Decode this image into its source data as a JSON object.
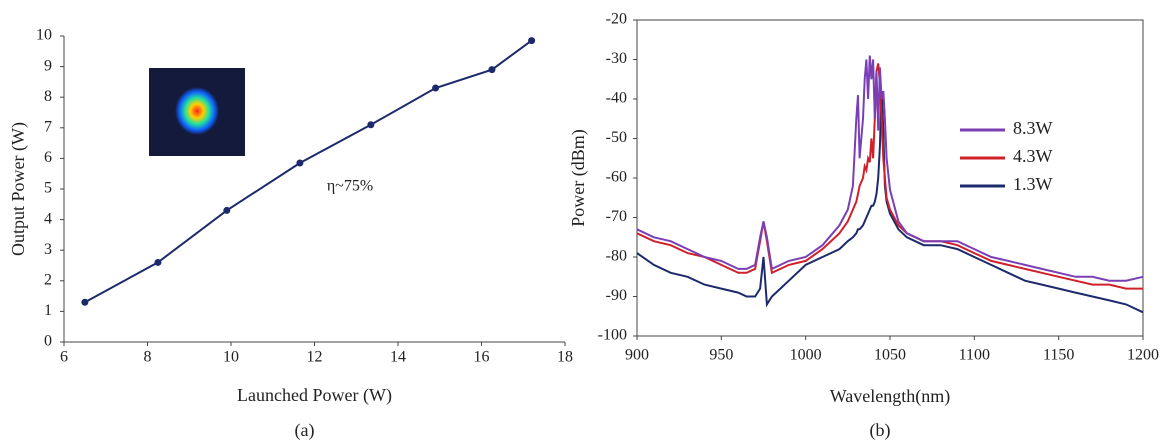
{
  "chart_data": [
    {
      "type": "line",
      "caption": "(a)",
      "xlabel": "Launched Power (W)",
      "ylabel": "Output Power (W)",
      "annotation": "η~75%",
      "x": [
        6.5,
        8.25,
        9.9,
        11.65,
        13.35,
        14.9,
        16.25,
        17.2
      ],
      "values": [
        1.3,
        2.6,
        4.3,
        5.85,
        7.1,
        8.3,
        8.9,
        9.85
      ],
      "color": "#1c2a6b",
      "markers": true,
      "frame": false,
      "xlim": [
        6,
        18
      ],
      "xticks": [
        6,
        8,
        10,
        12,
        14,
        16,
        18
      ],
      "ylim": [
        0,
        10
      ],
      "yticks": [
        0,
        1,
        2,
        3,
        4,
        5,
        6,
        7,
        8,
        9,
        10
      ]
    },
    {
      "type": "line",
      "caption": "(b)",
      "xlabel": "Wavelength(nm)",
      "ylabel": "Power (dBm)",
      "legend": "center right",
      "markers": false,
      "frame": true,
      "x": [
        900,
        910,
        920,
        930,
        940,
        950,
        960,
        965,
        970,
        973,
        975,
        977,
        980,
        985,
        990,
        1000,
        1010,
        1020,
        1025,
        1028,
        1030,
        1031,
        1032,
        1034,
        1035,
        1036,
        1037,
        1038,
        1039,
        1040,
        1041,
        1042,
        1043,
        1044,
        1045,
        1046,
        1047,
        1048,
        1050,
        1055,
        1060,
        1070,
        1080,
        1090,
        1100,
        1110,
        1120,
        1130,
        1140,
        1150,
        1160,
        1170,
        1180,
        1190,
        1200
      ],
      "series": [
        {
          "name": "8.3W",
          "color": "#7b3fb5",
          "values": [
            -73,
            -75,
            -76,
            -78,
            -80,
            -81,
            -83,
            -83,
            -82,
            -75,
            -71,
            -75,
            -83,
            -82,
            -81,
            -80,
            -77,
            -72,
            -68,
            -62,
            -45,
            -39,
            -55,
            -45,
            -35,
            -30,
            -40,
            -29,
            -35,
            -30,
            -45,
            -33,
            -48,
            -32,
            -40,
            -38,
            -45,
            -55,
            -63,
            -71,
            -74,
            -76,
            -76,
            -76,
            -78,
            -80,
            -81,
            -82,
            -83,
            -84,
            -85,
            -85,
            -86,
            -86,
            -85
          ]
        },
        {
          "name": "4.3W",
          "color": "#d0202a",
          "values": [
            -74,
            -76,
            -77,
            -79,
            -80,
            -82,
            -84,
            -84,
            -83,
            -76,
            -71,
            -76,
            -84,
            -83,
            -82,
            -81,
            -78,
            -74,
            -71,
            -68,
            -66,
            -64,
            -62,
            -60,
            -57,
            -58,
            -55,
            -56,
            -50,
            -55,
            -45,
            -33,
            -31,
            -36,
            -45,
            -55,
            -60,
            -65,
            -68,
            -72,
            -74,
            -76,
            -76,
            -77,
            -79,
            -81,
            -82,
            -83,
            -84,
            -85,
            -86,
            -87,
            -87,
            -88,
            -88
          ]
        },
        {
          "name": "1.3W",
          "color": "#1c2a6b",
          "values": [
            -79,
            -82,
            -84,
            -85,
            -87,
            -88,
            -89,
            -90,
            -90,
            -88,
            -80,
            -92,
            -90,
            -88,
            -86,
            -82,
            -80,
            -78,
            -76,
            -75,
            -74,
            -73,
            -73,
            -72,
            -71,
            -70,
            -69,
            -68,
            -67,
            -67,
            -66,
            -64,
            -60,
            -52,
            -38,
            -48,
            -62,
            -66,
            -69,
            -73,
            -75,
            -77,
            -77,
            -78,
            -80,
            -82,
            -84,
            -86,
            -87,
            -88,
            -89,
            -90,
            -91,
            -92,
            -94
          ]
        }
      ],
      "xlim": [
        900,
        1200
      ],
      "xticks": [
        900,
        950,
        1000,
        1050,
        1100,
        1150,
        1200
      ],
      "ylim": [
        -100,
        -20
      ],
      "yticks": [
        -100,
        -90,
        -80,
        -70,
        -60,
        -50,
        -40,
        -30,
        -20
      ]
    }
  ]
}
